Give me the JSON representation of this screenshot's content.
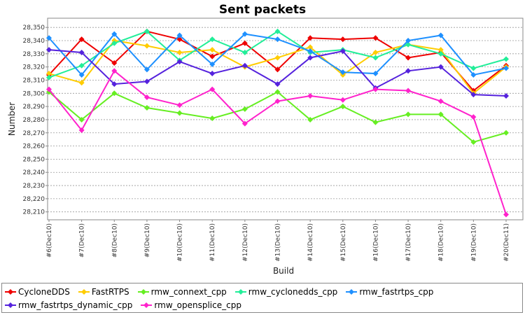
{
  "chart_data": {
    "type": "line",
    "title": "Sent packets",
    "xlabel": "Build",
    "ylabel": "Number",
    "categories": [
      "#6(Dec10)",
      "#7(Dec10)",
      "#8(Dec10)",
      "#9(Dec10)",
      "#10(Dec10)",
      "#11(Dec10)",
      "#12(Dec10)",
      "#13(Dec10)",
      "#14(Dec10)",
      "#15(Dec10)",
      "#16(Dec10)",
      "#17(Dec10)",
      "#18(Dec10)",
      "#19(Dec10)",
      "#20(Dec11)"
    ],
    "ylim": [
      28204,
      28357
    ],
    "yticks": [
      28210,
      28220,
      28230,
      28240,
      28250,
      28260,
      28270,
      28280,
      28290,
      28300,
      28310,
      28320,
      28330,
      28340,
      28350
    ],
    "ytick_labels": [
      "28,210",
      "28,220",
      "28,230",
      "28,240",
      "28,250",
      "28,260",
      "28,270",
      "28,280",
      "28,290",
      "28,300",
      "28,310",
      "28,320",
      "28,330",
      "28,340",
      "28,350"
    ],
    "grid": true,
    "legend_position": "bottom",
    "series": [
      {
        "name": "CycloneDDS",
        "color": "#ee0000",
        "values": [
          28314,
          28341,
          28323,
          28347,
          28341,
          28328,
          28338,
          28318,
          28342,
          28341,
          28342,
          28327,
          28331,
          28302,
          28321
        ]
      },
      {
        "name": "FastRTPS",
        "color": "#ffcc00",
        "values": [
          28315,
          28308,
          28340,
          28336,
          28331,
          28333,
          28320,
          28327,
          28335,
          28314,
          28331,
          28337,
          28333,
          28300,
          28320
        ]
      },
      {
        "name": "rmw_connext_cpp",
        "color": "#66ee22",
        "values": [
          28301,
          28280,
          28300,
          28289,
          28285,
          28281,
          28288,
          28301,
          28280,
          28290,
          28278,
          28284,
          28284,
          28263,
          28270
        ]
      },
      {
        "name": "rmw_cyclonedds_cpp",
        "color": "#22ee99",
        "values": [
          28312,
          28321,
          28338,
          28347,
          28325,
          28341,
          28331,
          28347,
          28331,
          28333,
          28327,
          28337,
          28330,
          28319,
          28326
        ]
      },
      {
        "name": "rmw_fastrtps_cpp",
        "color": "#1e90ff",
        "values": [
          28342,
          28314,
          28345,
          28318,
          28344,
          28322,
          28345,
          28341,
          28332,
          28316,
          28315,
          28340,
          28344,
          28314,
          28319
        ]
      },
      {
        "name": "rmw_fastrtps_dynamic_cpp",
        "color": "#5522dd",
        "values": [
          28333,
          28331,
          28307,
          28309,
          28324,
          28315,
          28321,
          28307,
          28327,
          28332,
          28304,
          28317,
          28320,
          28299,
          28298
        ]
      },
      {
        "name": "rmw_opensplice_cpp",
        "color": "#ff22cc",
        "values": [
          28303,
          28272,
          28317,
          28297,
          28291,
          28303,
          28277,
          28294,
          28298,
          28295,
          28303,
          28302,
          28294,
          28282,
          28208
        ]
      }
    ]
  }
}
